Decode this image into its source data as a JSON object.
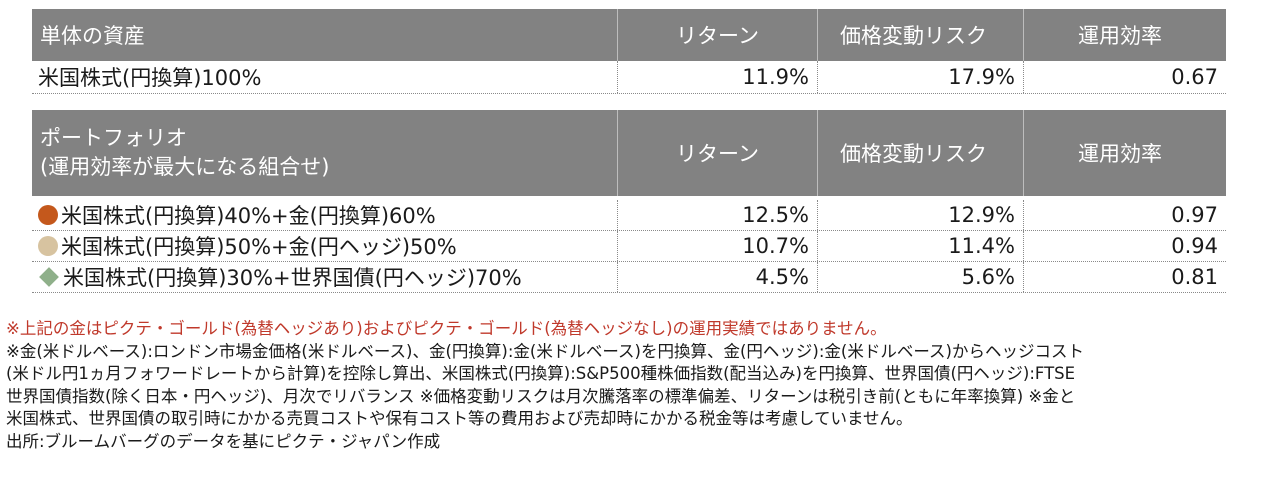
{
  "table1": {
    "headers": [
      "単体の資産",
      "リターン",
      "価格変動リスク",
      "運用効率"
    ],
    "rows": [
      {
        "name": "米国株式(円換算)100%",
        "return": "11.9%",
        "risk": "17.9%",
        "efficiency": "0.67"
      }
    ]
  },
  "table2": {
    "header_line1": "ポートフォリオ",
    "header_line2": "(運用効率が最大になる組合せ)",
    "headers": [
      "リターン",
      "価格変動リスク",
      "運用効率"
    ],
    "rows": [
      {
        "marker": "circle",
        "marker_color": "#c4581c",
        "name": "米国株式(円換算)40%+金(円換算)60%",
        "return": "12.5%",
        "risk": "12.9%",
        "efficiency": "0.97"
      },
      {
        "marker": "circle",
        "marker_color": "#d7c3a0",
        "name": "米国株式(円換算)50%+金(円ヘッジ)50%",
        "return": "10.7%",
        "risk": "11.4%",
        "efficiency": "0.94"
      },
      {
        "marker": "diamond",
        "marker_color": "#8fb08a",
        "name": "米国株式(円換算)30%+世界国債(円ヘッジ)70%",
        "return": "4.5%",
        "risk": "5.6%",
        "efficiency": "0.81"
      }
    ]
  },
  "notes": {
    "red_line": "※上記の金はピクテ・ゴールド(為替ヘッジあり)およびピクテ・ゴールド(為替ヘッジなし)の運用実績ではありません。",
    "lines": [
      "※金(米ドルベース):ロンドン市場金価格(米ドルベース)、金(円換算):金(米ドルベース)を円換算、金(円ヘッジ):金(米ドルベース)からヘッジコスト",
      "(米ドル円1ヵ月フォワードレートから計算)を控除し算出、米国株式(円換算):S&P500種株価指数(配当込み)を円換算、世界国債(円ヘッジ):FTSE",
      "世界国債指数(除く日本・円ヘッジ)、月次でリバランス ※価格変動リスクは月次騰落率の標準偏差、リターンは税引き前(ともに年率換算) ※金と",
      "米国株式、世界国債の取引時にかかる売買コストや保有コスト等の費用および売却時にかかる税金等は考慮していません。",
      "出所:ブルームバーグのデータを基にピクテ・ジャパン作成"
    ]
  },
  "colors": {
    "header_bg": "#828282",
    "red_note": "#c0392b"
  }
}
